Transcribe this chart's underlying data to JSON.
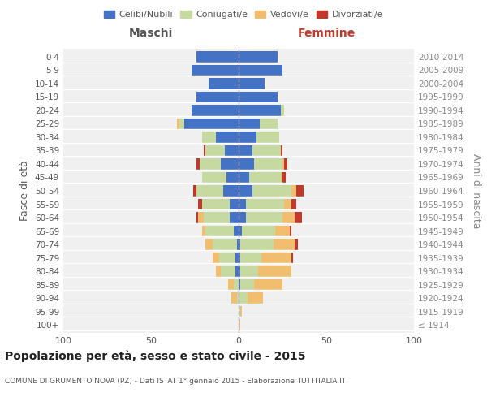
{
  "age_groups": [
    "100+",
    "95-99",
    "90-94",
    "85-89",
    "80-84",
    "75-79",
    "70-74",
    "65-69",
    "60-64",
    "55-59",
    "50-54",
    "45-49",
    "40-44",
    "35-39",
    "30-34",
    "25-29",
    "20-24",
    "15-19",
    "10-14",
    "5-9",
    "0-4"
  ],
  "birth_years": [
    "≤ 1914",
    "1915-1919",
    "1920-1924",
    "1925-1929",
    "1930-1934",
    "1935-1939",
    "1940-1944",
    "1945-1949",
    "1950-1954",
    "1955-1959",
    "1960-1964",
    "1965-1969",
    "1970-1974",
    "1975-1979",
    "1980-1984",
    "1985-1989",
    "1990-1994",
    "1995-1999",
    "2000-2004",
    "2005-2009",
    "2010-2014"
  ],
  "colors": {
    "celibe": "#4472c4",
    "coniugato": "#c5d9a0",
    "vedovo": "#f0be6e",
    "divorziato": "#c0392b"
  },
  "maschi": {
    "celibe": [
      0,
      0,
      0,
      0,
      2,
      2,
      1,
      3,
      5,
      5,
      9,
      7,
      10,
      8,
      13,
      31,
      27,
      24,
      17,
      27,
      24
    ],
    "coniugato": [
      0,
      0,
      1,
      3,
      8,
      9,
      14,
      16,
      15,
      16,
      15,
      14,
      12,
      11,
      8,
      3,
      0,
      0,
      0,
      0,
      0
    ],
    "vedovo": [
      0,
      0,
      3,
      3,
      3,
      4,
      4,
      2,
      3,
      0,
      0,
      0,
      0,
      0,
      0,
      1,
      0,
      0,
      0,
      0,
      0
    ],
    "divorziato": [
      0,
      0,
      0,
      0,
      0,
      0,
      0,
      0,
      1,
      2,
      2,
      0,
      2,
      1,
      0,
      0,
      0,
      0,
      0,
      0,
      0
    ]
  },
  "femmine": {
    "celibe": [
      0,
      0,
      0,
      1,
      1,
      1,
      1,
      2,
      4,
      4,
      8,
      6,
      9,
      8,
      10,
      12,
      24,
      22,
      15,
      25,
      22
    ],
    "coniugato": [
      0,
      1,
      5,
      8,
      10,
      12,
      19,
      19,
      21,
      22,
      22,
      18,
      16,
      16,
      13,
      10,
      2,
      0,
      0,
      0,
      0
    ],
    "vedovo": [
      1,
      1,
      9,
      16,
      19,
      17,
      12,
      8,
      7,
      4,
      3,
      1,
      1,
      0,
      0,
      0,
      0,
      0,
      0,
      0,
      0
    ],
    "divorziato": [
      0,
      0,
      0,
      0,
      0,
      1,
      2,
      1,
      4,
      3,
      4,
      2,
      2,
      1,
      0,
      0,
      0,
      0,
      0,
      0,
      0
    ]
  },
  "title": "Popolazione per età, sesso e stato civile - 2015",
  "subtitle": "COMUNE DI GRUMENTO NOVA (PZ) - Dati ISTAT 1° gennaio 2015 - Elaborazione TUTTITALIA.IT",
  "xlabel_left": "Maschi",
  "xlabel_right": "Femmine",
  "ylabel_left": "Fasce di età",
  "ylabel_right": "Anni di nascita",
  "xlim": 100,
  "legend_labels": [
    "Celibi/Nubili",
    "Coniugati/e",
    "Vedovi/e",
    "Divorziati/e"
  ],
  "bg_color": "#f0f0f0",
  "bar_height": 0.8,
  "grid_color": "#ffffff",
  "spine_color": "#cccccc"
}
